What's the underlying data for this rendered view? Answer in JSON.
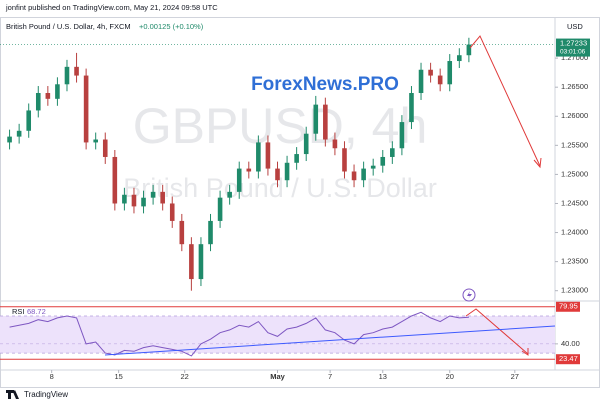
{
  "header": {
    "publisher": "jonfint published on TradingView.com, May 21, 2024 09:58 UTC",
    "footer": "TradingView"
  },
  "chart_data": [
    {
      "type": "candlestick",
      "title": "British Pound / U.S. Dollar, 4h, FXCM",
      "change": "+0.00125 (+0.10%)",
      "watermark": "GBPUSD, 4h",
      "watermark_subtitle": "British Pound / U.S. Dollar",
      "annotation": "ForexNews.PRO",
      "currency": "USD",
      "countdown": "03:01:06",
      "up_color": "#1f8a6a",
      "down_color": "#b8403f",
      "open": [
        1.2555,
        1.2565,
        1.2575,
        1.261,
        1.264,
        1.263,
        1.2655,
        1.2685,
        1.267,
        1.2555,
        1.256,
        1.253,
        1.245,
        1.2465,
        1.2445,
        1.246,
        1.247,
        1.245,
        1.242,
        1.238,
        1.232,
        1.238,
        1.242,
        1.246,
        1.247,
        1.251,
        1.2505,
        1.2555,
        1.251,
        1.249,
        1.252,
        1.2535,
        1.257,
        1.262,
        1.256,
        1.2545,
        1.2505,
        1.249,
        1.251,
        1.2515,
        1.253,
        1.2545,
        1.259,
        1.264,
        1.268,
        1.267,
        1.2655,
        1.2695,
        1.2705
      ],
      "high": [
        1.2577,
        1.2587,
        1.2622,
        1.2652,
        1.2652,
        1.2667,
        1.2697,
        1.2709,
        1.2682,
        1.2572,
        1.2572,
        1.2542,
        1.2477,
        1.2477,
        1.2472,
        1.2482,
        1.2482,
        1.2462,
        1.2432,
        1.2392,
        1.2392,
        1.2432,
        1.2472,
        1.2482,
        1.2522,
        1.2522,
        1.2567,
        1.2567,
        1.2522,
        1.2532,
        1.2547,
        1.2582,
        1.2635,
        1.2632,
        1.2572,
        1.2557,
        1.2517,
        1.2522,
        1.2527,
        1.2542,
        1.2557,
        1.2602,
        1.2652,
        1.2692,
        1.2692,
        1.2682,
        1.2707,
        1.2717,
        1.2735
      ],
      "low": [
        1.2543,
        1.2553,
        1.2563,
        1.2598,
        1.2618,
        1.2618,
        1.2643,
        1.2658,
        1.2543,
        1.2543,
        1.2518,
        1.2438,
        1.2438,
        1.2433,
        1.2433,
        1.2448,
        1.2438,
        1.2408,
        1.2368,
        1.23,
        1.2308,
        1.2368,
        1.2408,
        1.2448,
        1.2458,
        1.2493,
        1.2493,
        1.2498,
        1.2478,
        1.2478,
        1.2508,
        1.2523,
        1.2558,
        1.2548,
        1.2533,
        1.2493,
        1.2478,
        1.2478,
        1.2498,
        1.2503,
        1.2518,
        1.2533,
        1.2578,
        1.2628,
        1.2658,
        1.2643,
        1.2643,
        1.2683,
        1.2693
      ],
      "close": [
        1.2565,
        1.2575,
        1.261,
        1.264,
        1.263,
        1.2655,
        1.2685,
        1.267,
        1.2555,
        1.256,
        1.253,
        1.245,
        1.2465,
        1.2445,
        1.246,
        1.247,
        1.245,
        1.242,
        1.238,
        1.232,
        1.238,
        1.242,
        1.246,
        1.247,
        1.251,
        1.2505,
        1.2555,
        1.251,
        1.249,
        1.252,
        1.2535,
        1.257,
        1.262,
        1.256,
        1.2545,
        1.2505,
        1.249,
        1.251,
        1.2515,
        1.253,
        1.2545,
        1.259,
        1.264,
        1.268,
        1.267,
        1.2655,
        1.2695,
        1.2705,
        1.27233
      ],
      "xlim": [
        -1,
        57
      ],
      "xticks": [
        {
          "value": 4.4,
          "label": "8"
        },
        {
          "value": 11.4,
          "label": "15"
        },
        {
          "value": 18.3,
          "label": "22"
        },
        {
          "value": 28,
          "label": "May"
        },
        {
          "value": 33.5,
          "label": "7"
        },
        {
          "value": 39,
          "label": "13"
        },
        {
          "value": 46,
          "label": "20"
        },
        {
          "value": 52.8,
          "label": "27"
        }
      ],
      "ylim": [
        1.2284,
        1.2769
      ],
      "yticks": [
        {
          "value": 1.23,
          "label": "1.23000"
        },
        {
          "value": 1.235,
          "label": "1.23500"
        },
        {
          "value": 1.24,
          "label": "1.24000"
        },
        {
          "value": 1.245,
          "label": "1.24500"
        },
        {
          "value": 1.25,
          "label": "1.25000"
        },
        {
          "value": 1.255,
          "label": "1.25500"
        },
        {
          "value": 1.26,
          "label": "1.26000"
        },
        {
          "value": 1.265,
          "label": "1.26500"
        },
        {
          "value": 1.27,
          "label": "1.27000"
        }
      ]
    },
    {
      "type": "line",
      "series": [
        {
          "name": "RSI",
          "color": "#7e57c2",
          "values": [
            58,
            60,
            62,
            66,
            64,
            68,
            70,
            68,
            40,
            42,
            30,
            28,
            33,
            32,
            36,
            38,
            36,
            34,
            32,
            27,
            40,
            45,
            52,
            55,
            60,
            58,
            64,
            52,
            48,
            56,
            58,
            62,
            68,
            55,
            52,
            44,
            40,
            50,
            52,
            56,
            58,
            64,
            70,
            74,
            68,
            64,
            70,
            68,
            68.72
          ]
        }
      ],
      "ylim": [
        14,
        84
      ],
      "yticks": [
        {
          "value": 40,
          "label": "40.00"
        }
      ],
      "levels": [
        {
          "value": 79.95,
          "label": "79.95"
        },
        {
          "value": 23.47,
          "label": "23.47"
        }
      ],
      "level_color": "#e03a3a",
      "band": [
        30,
        70
      ],
      "band_color": "#ede2fb"
    }
  ]
}
